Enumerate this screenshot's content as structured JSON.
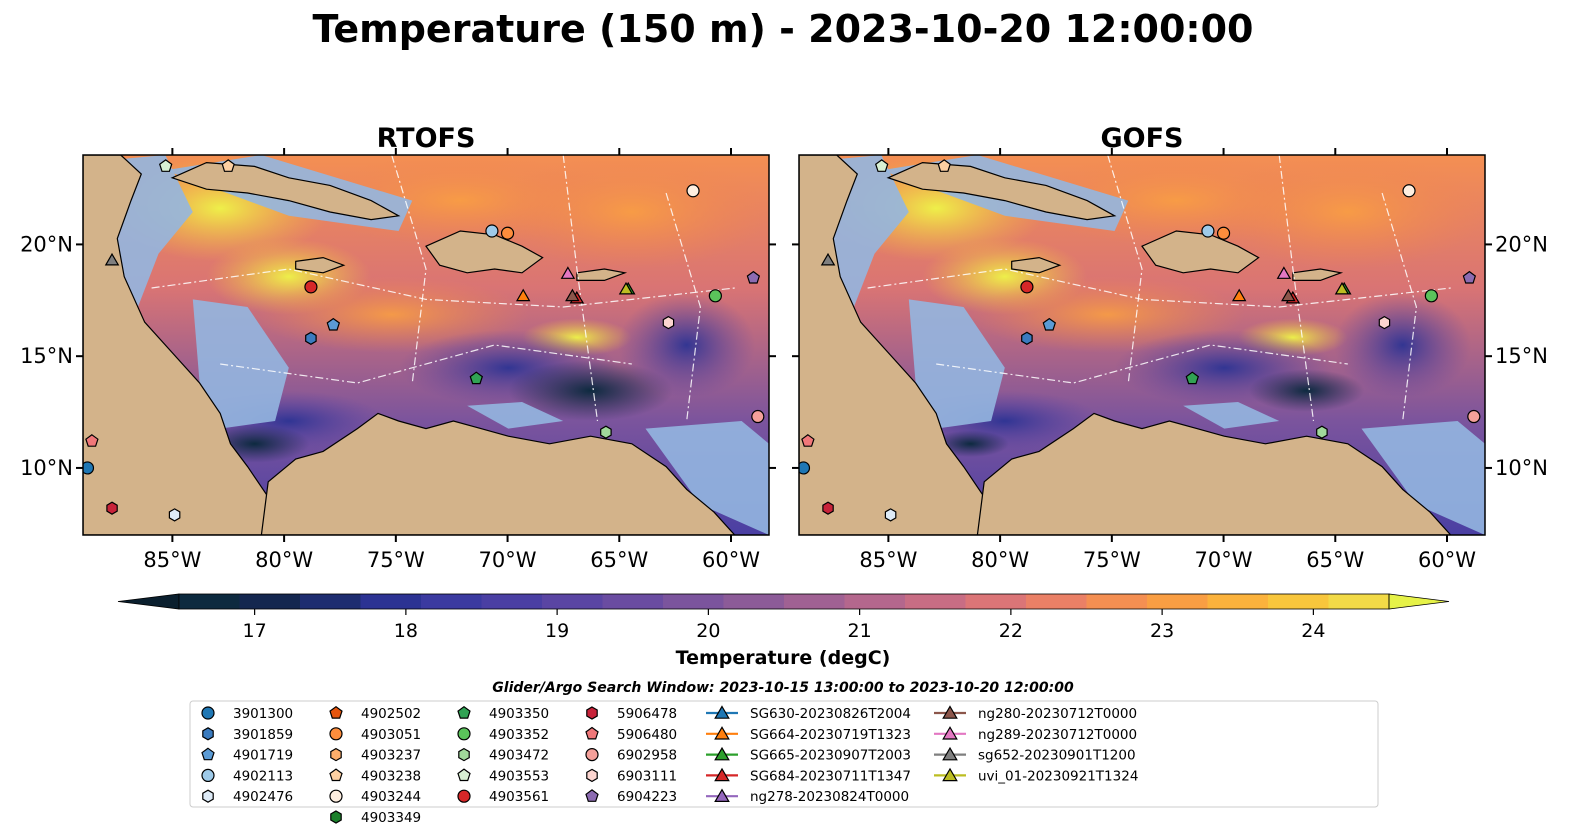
{
  "title": "Temperature (150 m) - 2023-10-20 12:00:00",
  "panels": [
    {
      "title": "RTOFS",
      "ytick_side": "left"
    },
    {
      "title": "GOFS",
      "ytick_side": "right"
    }
  ],
  "map_extent": {
    "lon": [
      -89,
      -58.3
    ],
    "lat": [
      7,
      24
    ]
  },
  "lon_ticks": [
    {
      "value": -85,
      "label": "85°W"
    },
    {
      "value": -80,
      "label": "80°W"
    },
    {
      "value": -75,
      "label": "75°W"
    },
    {
      "value": -70,
      "label": "70°W"
    },
    {
      "value": -65,
      "label": "65°W"
    },
    {
      "value": -60,
      "label": "60°W"
    }
  ],
  "lat_ticks": [
    {
      "value": 10,
      "label": "10°N"
    },
    {
      "value": 15,
      "label": "15°N"
    },
    {
      "value": 20,
      "label": "20°N"
    }
  ],
  "colorbar": {
    "label": "Temperature (degC)",
    "min": 16.5,
    "max": 24.5,
    "step": 0.5,
    "ticks": [
      17,
      18,
      19,
      20,
      21,
      22,
      23,
      24
    ],
    "colors": [
      "#0d2a3f",
      "#14274f",
      "#1e2d70",
      "#2c3393",
      "#3b3aa0",
      "#4a3fa3",
      "#5a45a3",
      "#6a4ca1",
      "#7b549d",
      "#8c5b98",
      "#a06193",
      "#b4678d",
      "#c86d84",
      "#db7577",
      "#ea8066",
      "#f48f52",
      "#f99e43",
      "#fbb23c",
      "#f8c63c",
      "#f2da47"
    ],
    "under_color": "#0a1f2e",
    "over_color": "#e6f248"
  },
  "search_window": "Glider/Argo Search Window: 2023-10-15 13:00:00 to 2023-10-20 12:00:00",
  "colors": {
    "land": "#d3b38a",
    "shelf": "#94b6e0",
    "ocean_deep": "#0a1f2e"
  },
  "legend": [
    {
      "label": "3901300",
      "marker": "circle",
      "color": "#1f77b4",
      "lon": -88.8,
      "lat": 10.0
    },
    {
      "label": "3901859",
      "marker": "hexagon",
      "color": "#3a7bbf",
      "lon": -78.8,
      "lat": 15.8
    },
    {
      "label": "4901719",
      "marker": "pentagon",
      "color": "#5b9bd5",
      "lon": -77.8,
      "lat": 16.4
    },
    {
      "label": "4902113",
      "marker": "circle",
      "color": "#9ecae9",
      "lon": -70.7,
      "lat": 20.6
    },
    {
      "label": "4902476",
      "marker": "hexagon",
      "color": "#deebf7",
      "lon": -84.9,
      "lat": 7.9
    },
    {
      "label": "4902502",
      "marker": "pentagon",
      "color": "#e6550d",
      "lon": null,
      "lat": null
    },
    {
      "label": "4903051",
      "marker": "circle",
      "color": "#fd8d3c",
      "lon": -70.0,
      "lat": 20.5
    },
    {
      "label": "4903237",
      "marker": "hexagon",
      "color": "#fdae6b",
      "lon": null,
      "lat": null
    },
    {
      "label": "4903238",
      "marker": "pentagon",
      "color": "#fdd0a2",
      "lon": -82.5,
      "lat": 23.5
    },
    {
      "label": "4903244",
      "marker": "circle",
      "color": "#feeee0",
      "lon": -61.7,
      "lat": 22.4
    },
    {
      "label": "4903349",
      "marker": "hexagon",
      "color": "#1a7f2a",
      "lon": null,
      "lat": null
    },
    {
      "label": "4903350",
      "marker": "pentagon",
      "color": "#31a354",
      "lon": -71.4,
      "lat": 14.0
    },
    {
      "label": "4903352",
      "marker": "circle",
      "color": "#5bc35b",
      "lon": -60.7,
      "lat": 17.7
    },
    {
      "label": "4903472",
      "marker": "hexagon",
      "color": "#a1d99b",
      "lon": -65.6,
      "lat": 11.6
    },
    {
      "label": "4903553",
      "marker": "pentagon",
      "color": "#d9f0d3",
      "lon": -85.3,
      "lat": 23.5
    },
    {
      "label": "4903561",
      "marker": "circle",
      "color": "#d62728",
      "lon": -78.8,
      "lat": 18.1
    },
    {
      "label": "5906478",
      "marker": "hexagon",
      "color": "#c8233a",
      "lon": -87.7,
      "lat": 8.2
    },
    {
      "label": "5906480",
      "marker": "pentagon",
      "color": "#f0787a",
      "lon": -88.6,
      "lat": 11.2
    },
    {
      "label": "6902958",
      "marker": "circle",
      "color": "#f4a09a",
      "lon": -58.8,
      "lat": 12.3
    },
    {
      "label": "6903111",
      "marker": "hexagon",
      "color": "#fcd5d0",
      "lon": -62.8,
      "lat": 16.5
    },
    {
      "label": "6904223",
      "marker": "pentagon",
      "color": "#8c6bb1",
      "lon": -59.0,
      "lat": 18.5
    },
    {
      "label": "SG630-20230826T2004",
      "marker": "triangle-line",
      "color": "#1f77b4",
      "lon": null,
      "lat": null
    },
    {
      "label": "SG664-20230719T1323",
      "marker": "triangle-line",
      "color": "#ff7f0e",
      "lon": -69.3,
      "lat": 17.7
    },
    {
      "label": "SG665-20230907T2003",
      "marker": "triangle-line",
      "color": "#2ca02c",
      "lon": -64.6,
      "lat": 18.0
    },
    {
      "label": "SG684-20230711T1347",
      "marker": "triangle-line",
      "color": "#d62728",
      "lon": -66.9,
      "lat": 17.6
    },
    {
      "label": "ng278-20230824T0000",
      "marker": "triangle-line",
      "color": "#9467bd",
      "lon": null,
      "lat": null
    },
    {
      "label": "ng280-20230712T0000",
      "marker": "triangle-line",
      "color": "#8c564b",
      "lon": -67.1,
      "lat": 17.7
    },
    {
      "label": "ng289-20230712T0000",
      "marker": "triangle-line",
      "color": "#e377c2",
      "lon": -67.3,
      "lat": 18.7
    },
    {
      "label": "sg652-20230901T1200",
      "marker": "triangle-line",
      "color": "#7f7f7f",
      "lon": -87.7,
      "lat": 19.3
    },
    {
      "label": "uvi_01-20230921T1324",
      "marker": "triangle-line",
      "color": "#bcbd22",
      "lon": -64.7,
      "lat": 18.0
    }
  ]
}
